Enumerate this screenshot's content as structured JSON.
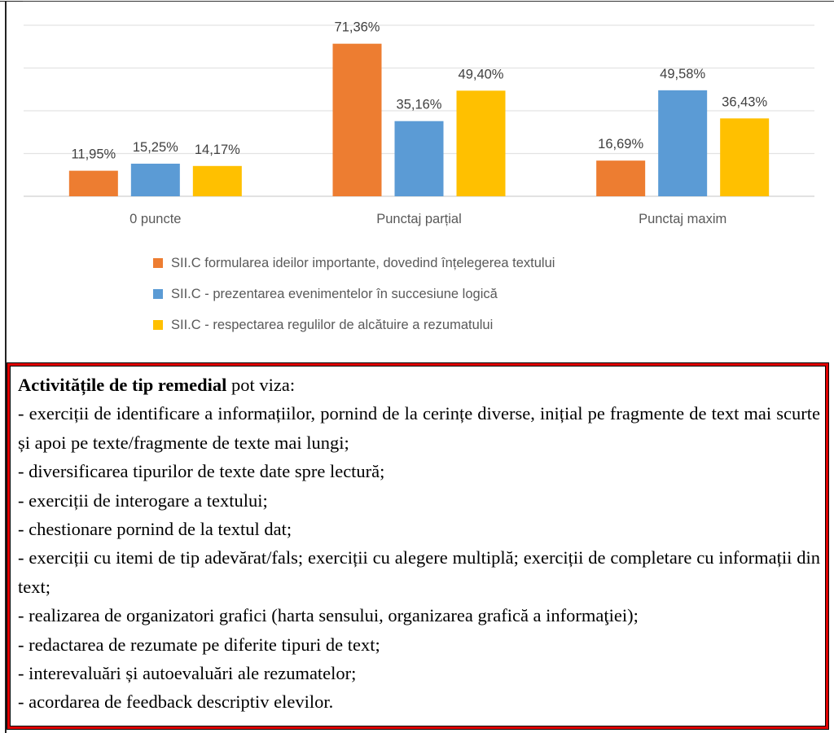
{
  "chart_data": {
    "type": "bar",
    "categories": [
      "0 puncte",
      "Punctaj parțial",
      "Punctaj maxim"
    ],
    "series": [
      {
        "name": "SII.C formularea ideilor importante, dovedind înțelegerea textului",
        "color": "#ED7D31",
        "values": [
          11.95,
          71.36,
          16.69
        ],
        "labels": [
          "11,95%",
          "71,36%",
          "16,69%"
        ]
      },
      {
        "name": "SII.C - prezentarea evenimentelor în succesiune logică",
        "color": "#5B9BD5",
        "values": [
          15.25,
          35.16,
          49.58
        ],
        "labels": [
          "15,25%",
          "35,16%",
          "49,58%"
        ]
      },
      {
        "name": "SII.C - respectarea regulilor de alcătuire a rezumatului",
        "color": "#FFC000",
        "values": [
          14.17,
          49.4,
          36.43
        ],
        "labels": [
          "14,17%",
          "49,40%",
          "36,43%"
        ]
      }
    ],
    "ylim": [
      0,
      80
    ],
    "grid": true,
    "legend": "bottom"
  },
  "remedial": {
    "title_bold": "Activitățile de tip remedial",
    "title_rest": " pot viza:",
    "items": [
      "- exerciții de identificare a informațiilor, pornind de la cerințe diverse, inițial pe fragmente de text mai scurte și apoi pe texte/fragmente de texte mai lungi;",
      "-  diversificarea tipurilor de texte date spre lectură;",
      "-  exerciții de interogare a textului;",
      "-  chestionare pornind de la textul dat;",
      "- exerciții cu itemi de tip adevărat/fals; exerciții cu alegere multiplă; exerciții de completare cu informații din text;",
      "-  realizarea de organizatori grafici (harta sensului, organizarea grafică a informaţiei);",
      "-  redactarea de rezumate pe diferite tipuri de text;",
      "-  interevaluări și autoevaluări ale rezumatelor;",
      "-  acordarea de feedback descriptiv elevilor."
    ]
  }
}
